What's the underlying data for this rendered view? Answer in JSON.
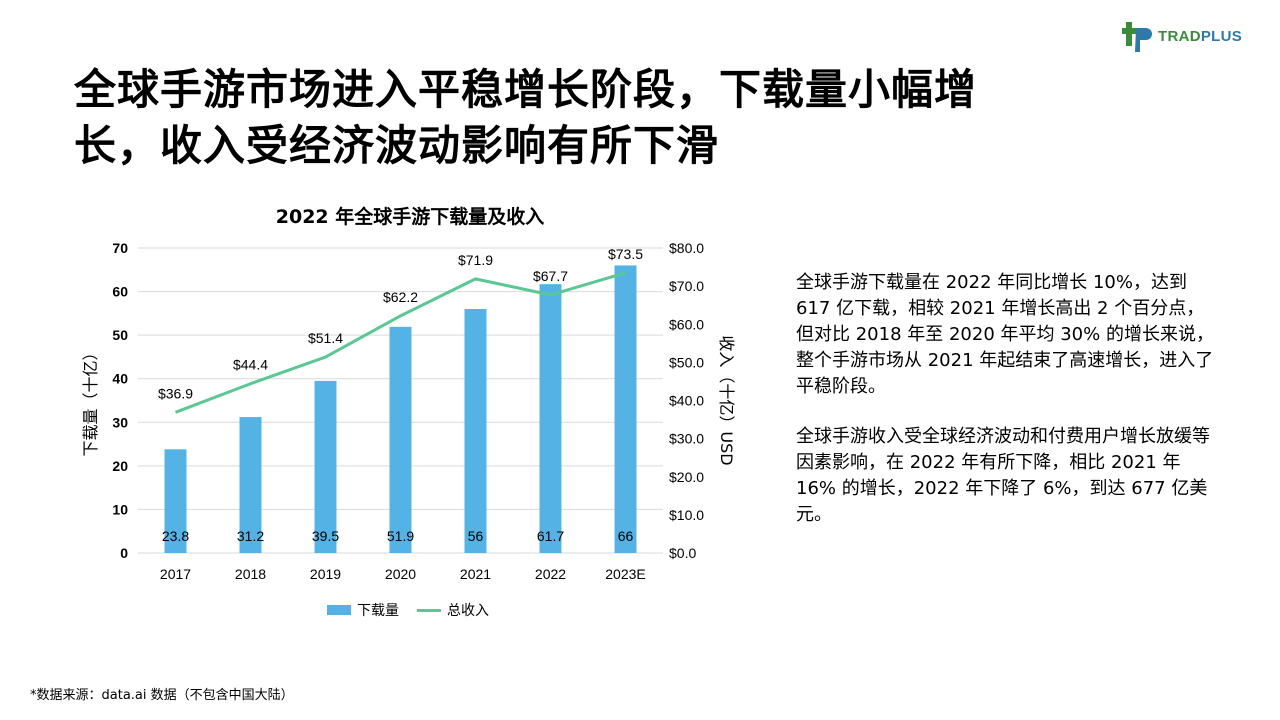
{
  "brand": {
    "name_part1": "TRAD",
    "name_part2": "PLUS",
    "color1": "#3c8a3c",
    "color2": "#2d7aa8"
  },
  "headline": "全球手游市场进入平稳增长阶段，下载量小幅增长，收入受经济波动影响有所下滑",
  "chart_data": {
    "type": "bar",
    "title": "2022 年全球手游下载量及收入",
    "categories": [
      "2017",
      "2018",
      "2019",
      "2020",
      "2021",
      "2022",
      "2023E"
    ],
    "series": [
      {
        "name": "下载量",
        "kind": "bar",
        "axis": "left",
        "color": "#54b3e4",
        "values": [
          23.8,
          31.2,
          39.5,
          51.9,
          56,
          61.7,
          66
        ],
        "labels": [
          "23.8",
          "31.2",
          "39.5",
          "51.9",
          "56",
          "61.7",
          "66"
        ]
      },
      {
        "name": "总收入",
        "kind": "line",
        "axis": "right",
        "color": "#5bc795",
        "values": [
          36.9,
          44.4,
          51.4,
          62.2,
          71.9,
          67.7,
          73.5
        ],
        "labels": [
          "$36.9",
          "$44.4",
          "$51.4",
          "$62.2",
          "$71.9",
          "$67.7",
          "$73.5"
        ]
      }
    ],
    "ylabel": "下载量（十亿）",
    "y2label": "收入（十亿）USD",
    "ylim": [
      0,
      70
    ],
    "yticks": [
      "0",
      "10",
      "20",
      "30",
      "40",
      "50",
      "60",
      "70"
    ],
    "y2lim": [
      0,
      80
    ],
    "y2ticks": [
      "$0.0",
      "$10.0",
      "$20.0",
      "$30.0",
      "$40.0",
      "$50.0",
      "$60.0",
      "$70.0",
      "$80.0"
    ],
    "grid": true,
    "legend": "bottom"
  },
  "paragraphs": [
    "全球手游下载量在 2022 年同比增长 10%，达到 617 亿下载，相较 2021 年增长高出 2 个百分点，但对比 2018 年至 2020 年平均 30% 的增长来说，整个手游市场从 2021 年起结束了高速增长，进入了平稳阶段。",
    "全球手游收入受全球经济波动和付费用户增长放缓等因素影响，在 2022 年有所下降，相比 2021 年 16% 的增长，2022 年下降了 6%，到达 677 亿美元。"
  ],
  "source": "*数据来源：data.ai 数据（不包含中国大陆）"
}
